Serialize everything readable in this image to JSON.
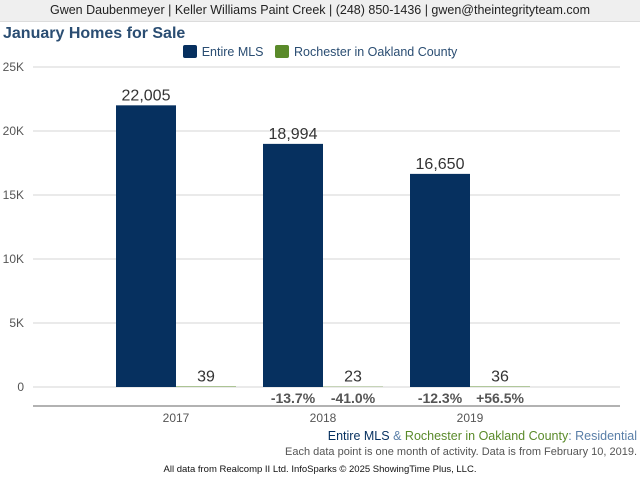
{
  "header": {
    "contact": "Gwen Daubenmeyer | Keller Williams Paint Creek | (248) 850-1436 | gwen@theintegrityteam.com"
  },
  "colors": {
    "entire_mls": "#06305f",
    "rochester": "#5a8a2a",
    "title": "#2a4d72"
  },
  "chart_data": {
    "type": "bar",
    "title": "January Homes for Sale",
    "categories": [
      "2017",
      "2018",
      "2019"
    ],
    "series": [
      {
        "name": "Entire MLS",
        "values": [
          22005,
          18994,
          16650
        ],
        "labels": [
          "22,005",
          "18,994",
          "16,650"
        ],
        "changes": [
          "",
          "-13.7%",
          "-12.3%"
        ]
      },
      {
        "name": "Rochester in Oakland County",
        "values": [
          39,
          23,
          36
        ],
        "labels": [
          "39",
          "23",
          "36"
        ],
        "changes": [
          "",
          "-41.0%",
          "+56.5%"
        ]
      }
    ],
    "ylim": [
      0,
      25000
    ],
    "yticks": [
      0,
      5000,
      10000,
      15000,
      20000,
      25000
    ],
    "ytick_labels": [
      "0",
      "5K",
      "10K",
      "15K",
      "20K",
      "25K"
    ],
    "grid": true,
    "legend": "top-center"
  },
  "footer": {
    "series1": "Entire MLS",
    "amp": "&",
    "series2": "Rochester in Oakland County",
    "suffix": ": Residential",
    "note": "Each data point is one month of activity. Data is from February 10, 2019.",
    "credit": "All data from Realcomp II Ltd. InfoSparks © 2025 ShowingTime Plus, LLC."
  }
}
